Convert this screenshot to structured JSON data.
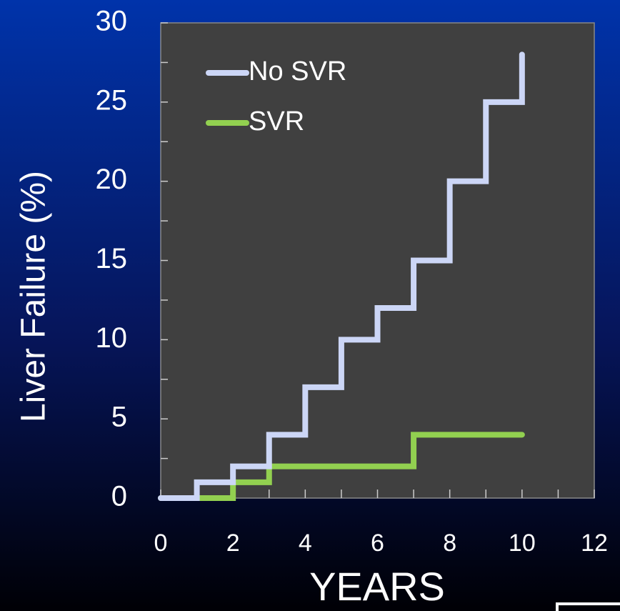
{
  "chart_data": {
    "type": "step",
    "ylabel": "Liver Failure (%)",
    "xlabel": "YEARS",
    "xlim": [
      0,
      12
    ],
    "xticks": [
      0,
      2,
      4,
      6,
      8,
      10,
      12
    ],
    "xminor_ticks": [
      1,
      3,
      5,
      7,
      9,
      11
    ],
    "ylim": [
      0,
      30
    ],
    "yticks": [
      0,
      5,
      10,
      15,
      20,
      25,
      30
    ],
    "yminor_ticks": [
      2.5,
      7.5,
      12.5,
      17.5,
      22.5,
      27.5
    ],
    "series": [
      {
        "name": "No SVR",
        "color": "#ccd6f6",
        "x": [
          0,
          1,
          2,
          3,
          4,
          5,
          6,
          7,
          8,
          9,
          10
        ],
        "values": [
          0,
          1,
          2,
          4,
          7,
          10,
          12,
          15,
          20,
          25,
          28
        ]
      },
      {
        "name": "SVR",
        "color": "#92d050",
        "x": [
          0,
          2,
          3,
          7,
          10
        ],
        "values": [
          0,
          1,
          2,
          4,
          4
        ]
      }
    ]
  }
}
